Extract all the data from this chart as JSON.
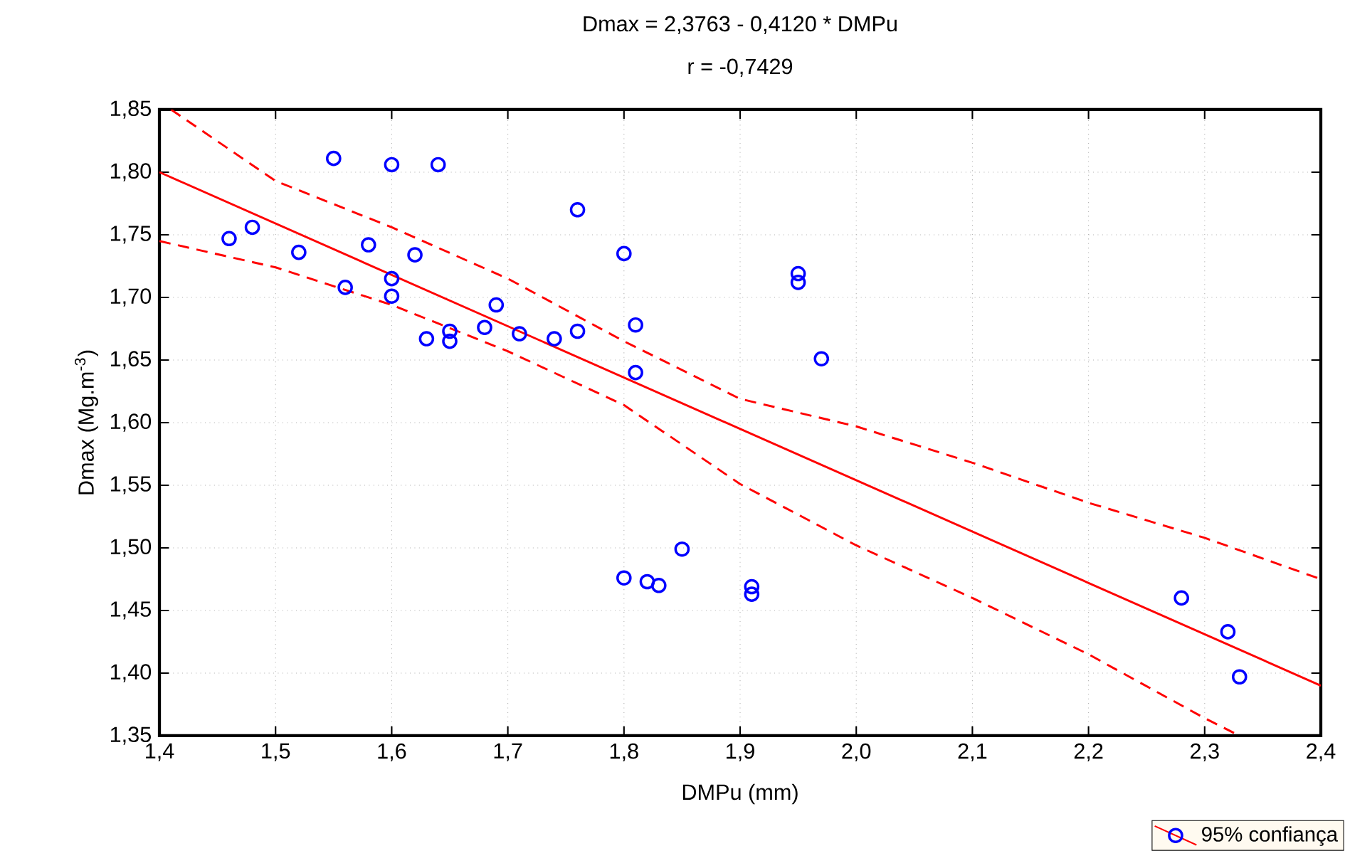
{
  "chart_data": {
    "type": "scatter",
    "title": "Dmax     = 2,3763 - 0,4120  * DMPu",
    "subtitle": "r = -0,7429",
    "xlabel": "DMPu (mm)",
    "ylabel": "Dmax (Mg.m$^{-3}$)",
    "xlim": [
      1.4,
      2.4
    ],
    "ylim": [
      1.35,
      1.85
    ],
    "xticks": [
      {
        "value": 1.4,
        "label": "1,4"
      },
      {
        "value": 1.5,
        "label": "1,5"
      },
      {
        "value": 1.6,
        "label": "1,6"
      },
      {
        "value": 1.7,
        "label": "1,7"
      },
      {
        "value": 1.8,
        "label": "1,8"
      },
      {
        "value": 1.9,
        "label": "1,9"
      },
      {
        "value": 2.0,
        "label": "2,0"
      },
      {
        "value": 2.1,
        "label": "2,1"
      },
      {
        "value": 2.2,
        "label": "2,2"
      },
      {
        "value": 2.3,
        "label": "2,3"
      },
      {
        "value": 2.4,
        "label": "2,4"
      }
    ],
    "yticks": [
      {
        "value": 1.35,
        "label": "1,35"
      },
      {
        "value": 1.4,
        "label": "1,40"
      },
      {
        "value": 1.45,
        "label": "1,45"
      },
      {
        "value": 1.5,
        "label": "1,50"
      },
      {
        "value": 1.55,
        "label": "1,55"
      },
      {
        "value": 1.6,
        "label": "1,60"
      },
      {
        "value": 1.65,
        "label": "1,65"
      },
      {
        "value": 1.7,
        "label": "1,70"
      },
      {
        "value": 1.75,
        "label": "1,75"
      },
      {
        "value": 1.8,
        "label": "1,80"
      },
      {
        "value": 1.85,
        "label": "1,85"
      }
    ],
    "grid": true,
    "legend": "bottom right",
    "series": [
      {
        "name": "95% confiança",
        "color": "#0000ff",
        "marker": "circle",
        "x": [
          1.46,
          1.48,
          1.52,
          1.55,
          1.56,
          1.58,
          1.6,
          1.6,
          1.6,
          1.62,
          1.63,
          1.64,
          1.65,
          1.65,
          1.68,
          1.69,
          1.71,
          1.74,
          1.76,
          1.76,
          1.8,
          1.81,
          1.81,
          1.8,
          1.82,
          1.83,
          1.85,
          1.91,
          1.91,
          1.95,
          1.95,
          1.97,
          2.28,
          2.32,
          2.33
        ],
        "values": [
          1.747,
          1.756,
          1.736,
          1.811,
          1.708,
          1.742,
          1.806,
          1.715,
          1.701,
          1.734,
          1.667,
          1.806,
          1.673,
          1.665,
          1.676,
          1.694,
          1.671,
          1.667,
          1.77,
          1.673,
          1.735,
          1.678,
          1.64,
          1.476,
          1.473,
          1.47,
          1.499,
          1.469,
          1.463,
          1.719,
          1.712,
          1.651,
          1.46,
          1.433,
          1.397
        ]
      },
      {
        "type": "line",
        "color": "#ff0000",
        "line_style": "solid",
        "marker": "none",
        "x": [
          1.4,
          2.4
        ],
        "values": [
          1.8,
          1.39
        ]
      },
      {
        "type": "line",
        "color": "#ff0000",
        "line_style": "dashed",
        "marker": "none",
        "x": [
          1.41,
          1.5,
          1.6,
          1.7,
          1.8,
          1.9,
          2.0,
          2.1,
          2.2,
          2.3,
          2.4
        ],
        "values": [
          1.85,
          1.793,
          1.756,
          1.715,
          1.665,
          1.619,
          1.597,
          1.568,
          1.536,
          1.508,
          1.475
        ]
      },
      {
        "type": "line",
        "color": "#ff0000",
        "line_style": "dashed",
        "marker": "none",
        "x": [
          1.4,
          1.5,
          1.6,
          1.7,
          1.8,
          1.9,
          2.0,
          2.1,
          2.2,
          2.3,
          2.33
        ],
        "values": [
          1.745,
          1.724,
          1.694,
          1.657,
          1.614,
          1.551,
          1.502,
          1.46,
          1.415,
          1.364,
          1.35
        ]
      }
    ]
  }
}
